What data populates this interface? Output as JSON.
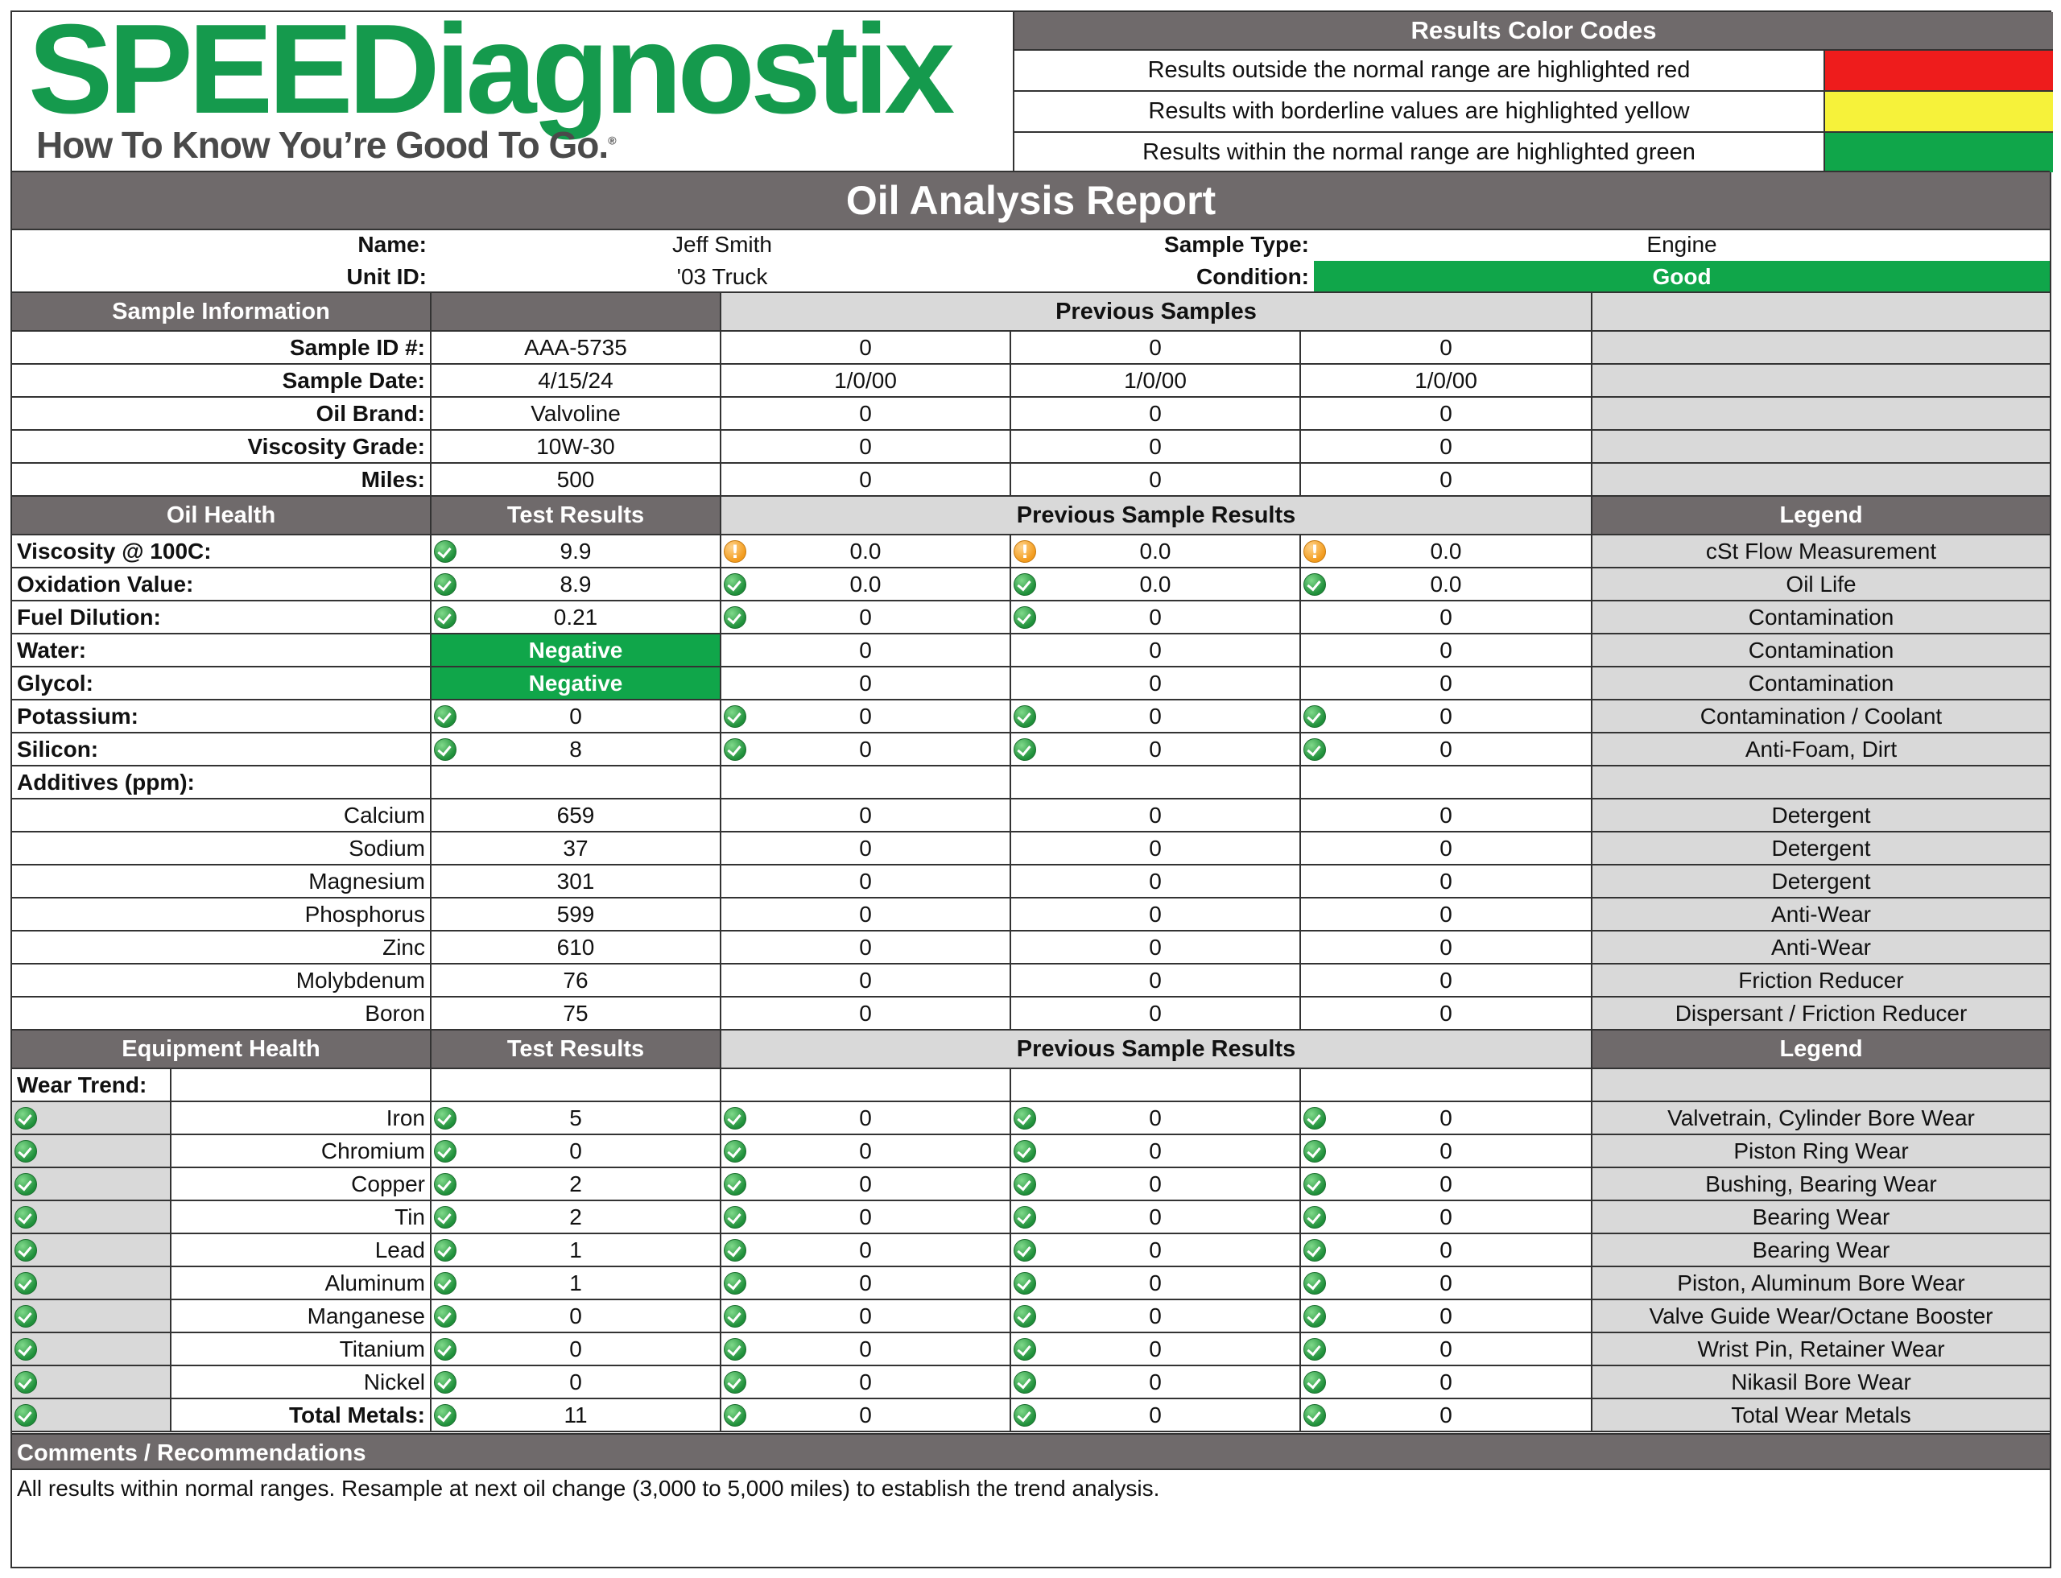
{
  "logo": {
    "word": "SPEEDiagnostix",
    "tagline": "How To Know You’re Good To Go."
  },
  "colors": {
    "red": "#ee1c1c",
    "yellow": "#f6f23a",
    "green": "#10a64a",
    "header_gray": "#6f6a6b",
    "legend_gray": "#d9d9d9"
  },
  "codes": {
    "title": "Results Color Codes",
    "rows": [
      {
        "text": "Results outside the normal range are highlighted red",
        "color": "#ee1c1c"
      },
      {
        "text": "Results with borderline values are highlighted yellow",
        "color": "#f6f23a"
      },
      {
        "text": "Results within the normal range are highlighted green",
        "color": "#10a64a"
      }
    ]
  },
  "report_title": "Oil Analysis Report",
  "info": {
    "name_label": "Name:",
    "name": "Jeff Smith",
    "unit_label": "Unit ID:",
    "unit": "'03 Truck",
    "type_label": "Sample Type:",
    "type": "Engine",
    "condition_label": "Condition:",
    "condition": "Good"
  },
  "sample_info": {
    "header": "Sample Information",
    "prev_header": "Previous Samples",
    "rows": [
      {
        "label": "Sample ID #:",
        "current": "AAA-5735",
        "prev": [
          "0",
          "0",
          "0"
        ]
      },
      {
        "label": "Sample Date:",
        "current": "4/15/24",
        "prev": [
          "1/0/00",
          "1/0/00",
          "1/0/00"
        ]
      },
      {
        "label": "Oil Brand:",
        "current": "Valvoline",
        "prev": [
          "0",
          "0",
          "0"
        ]
      },
      {
        "label": "Viscosity Grade:",
        "current": "10W-30",
        "prev": [
          "0",
          "0",
          "0"
        ]
      },
      {
        "label": "Miles:",
        "current": "500",
        "prev": [
          "0",
          "0",
          "0"
        ]
      }
    ]
  },
  "oil_health": {
    "header": "Oil Health",
    "test_header": "Test Results",
    "prev_header": "Previous Sample Results",
    "legend_header": "Legend",
    "rows": [
      {
        "label": "Viscosity @ 100C:",
        "current": "9.9",
        "icon": "ok",
        "prev": [
          "0.0",
          "0.0",
          "0.0"
        ],
        "prev_icons": [
          "warn",
          "warn",
          "warn"
        ],
        "legend": "cSt Flow Measurement"
      },
      {
        "label": "Oxidation Value:",
        "current": "8.9",
        "icon": "ok",
        "prev": [
          "0.0",
          "0.0",
          "0.0"
        ],
        "prev_icons": [
          "ok",
          "ok",
          "ok"
        ],
        "legend": "Oil Life"
      },
      {
        "label": "Fuel Dilution:",
        "current": "0.21",
        "icon": "ok",
        "prev": [
          "0",
          "0",
          "0"
        ],
        "prev_icons": [
          "ok",
          "ok",
          ""
        ],
        "legend": "Contamination"
      },
      {
        "label": "Water:",
        "current": "Negative",
        "icon": "neg",
        "prev": [
          "0",
          "0",
          "0"
        ],
        "prev_icons": [
          "",
          "",
          ""
        ],
        "legend": "Contamination"
      },
      {
        "label": "Glycol:",
        "current": "Negative",
        "icon": "neg",
        "prev": [
          "0",
          "0",
          "0"
        ],
        "prev_icons": [
          "",
          "",
          ""
        ],
        "legend": "Contamination"
      },
      {
        "label": "Potassium:",
        "current": "0",
        "icon": "ok",
        "prev": [
          "0",
          "0",
          "0"
        ],
        "prev_icons": [
          "ok",
          "ok",
          "ok"
        ],
        "legend": "Contamination / Coolant"
      },
      {
        "label": "Silicon:",
        "current": "8",
        "icon": "ok",
        "prev": [
          "0",
          "0",
          "0"
        ],
        "prev_icons": [
          "ok",
          "ok",
          "ok"
        ],
        "legend": "Anti-Foam, Dirt"
      }
    ],
    "additives_label": "Additives (ppm):",
    "additives": [
      {
        "label": "Calcium",
        "current": "659",
        "prev": [
          "0",
          "0",
          "0"
        ],
        "legend": "Detergent"
      },
      {
        "label": "Sodium",
        "current": "37",
        "prev": [
          "0",
          "0",
          "0"
        ],
        "legend": "Detergent"
      },
      {
        "label": "Magnesium",
        "current": "301",
        "prev": [
          "0",
          "0",
          "0"
        ],
        "legend": "Detergent"
      },
      {
        "label": "Phosphorus",
        "current": "599",
        "prev": [
          "0",
          "0",
          "0"
        ],
        "legend": "Anti-Wear"
      },
      {
        "label": "Zinc",
        "current": "610",
        "prev": [
          "0",
          "0",
          "0"
        ],
        "legend": "Anti-Wear"
      },
      {
        "label": "Molybdenum",
        "current": "76",
        "prev": [
          "0",
          "0",
          "0"
        ],
        "legend": "Friction Reducer"
      },
      {
        "label": "Boron",
        "current": "75",
        "prev": [
          "0",
          "0",
          "0"
        ],
        "legend": "Dispersant / Friction Reducer"
      }
    ]
  },
  "equipment": {
    "header": "Equipment Health",
    "test_header": "Test Results",
    "prev_header": "Previous Sample Results",
    "legend_header": "Legend",
    "wear_trend_label": "Wear Trend:",
    "rows": [
      {
        "label": "Iron",
        "current": "5",
        "prev": [
          "0",
          "0",
          "0"
        ],
        "legend": "Valvetrain, Cylinder Bore Wear"
      },
      {
        "label": "Chromium",
        "current": "0",
        "prev": [
          "0",
          "0",
          "0"
        ],
        "legend": "Piston Ring Wear"
      },
      {
        "label": "Copper",
        "current": "2",
        "prev": [
          "0",
          "0",
          "0"
        ],
        "legend": "Bushing, Bearing Wear"
      },
      {
        "label": "Tin",
        "current": "2",
        "prev": [
          "0",
          "0",
          "0"
        ],
        "legend": "Bearing Wear"
      },
      {
        "label": "Lead",
        "current": "1",
        "prev": [
          "0",
          "0",
          "0"
        ],
        "legend": "Bearing Wear"
      },
      {
        "label": "Aluminum",
        "current": "1",
        "prev": [
          "0",
          "0",
          "0"
        ],
        "legend": "Piston, Aluminum Bore Wear"
      },
      {
        "label": "Manganese",
        "current": "0",
        "prev": [
          "0",
          "0",
          "0"
        ],
        "legend": "Valve Guide Wear/Octane Booster"
      },
      {
        "label": "Titanium",
        "current": "0",
        "prev": [
          "0",
          "0",
          "0"
        ],
        "legend": "Wrist Pin, Retainer Wear"
      },
      {
        "label": "Nickel",
        "current": "0",
        "prev": [
          "0",
          "0",
          "0"
        ],
        "legend": "Nikasil Bore Wear"
      },
      {
        "label": "Total Metals:",
        "current": "11",
        "prev": [
          "0",
          "0",
          "0"
        ],
        "legend": "Total Wear Metals",
        "bold": true
      }
    ]
  },
  "comments": {
    "header": "Comments / Recommendations",
    "text": "All results within normal ranges. Resample at next oil change (3,000 to 5,000 miles) to establish the trend analysis."
  }
}
